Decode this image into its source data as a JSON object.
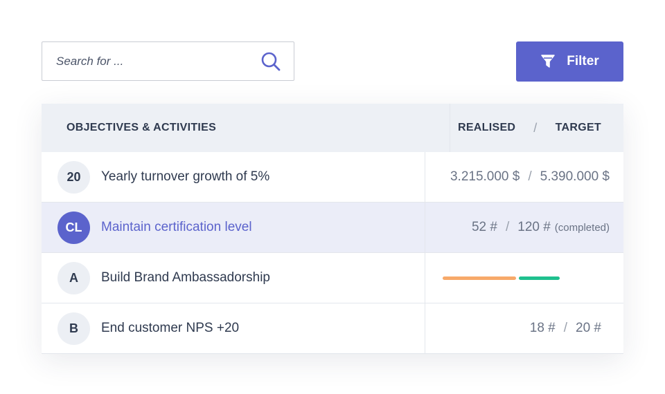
{
  "search": {
    "placeholder": "Search for ..."
  },
  "toolbar": {
    "filter_label": "Filter"
  },
  "table": {
    "header": {
      "objectives": "OBJECTIVES & ACTIVITIES",
      "realised": "REALISED",
      "separator": "/",
      "target": "TARGET"
    },
    "rows": [
      {
        "badge": "20",
        "label": "Yearly turnover growth of 5%",
        "realised": "3.215.000 $",
        "separator": "/",
        "target": "5.390.000 $"
      },
      {
        "badge": "CL",
        "label": "Maintain certification level",
        "realised": "52 #",
        "separator": "/",
        "target": "120 #",
        "suffix": "(completed)"
      },
      {
        "badge": "A",
        "label": "Build Brand Ambassadorship",
        "progress": [
          {
            "color": "#f7a96a",
            "fraction": 0.5
          },
          {
            "color": "#1fc08e",
            "fraction": 0.28
          }
        ]
      },
      {
        "badge": "B",
        "label": "End customer NPS +20",
        "realised": "18 #",
        "separator": "/",
        "target": "20 #"
      }
    ]
  },
  "colors": {
    "accent": "#5b63cc",
    "header_bg": "#edf0f5",
    "highlight_bg": "#ebedf8"
  }
}
